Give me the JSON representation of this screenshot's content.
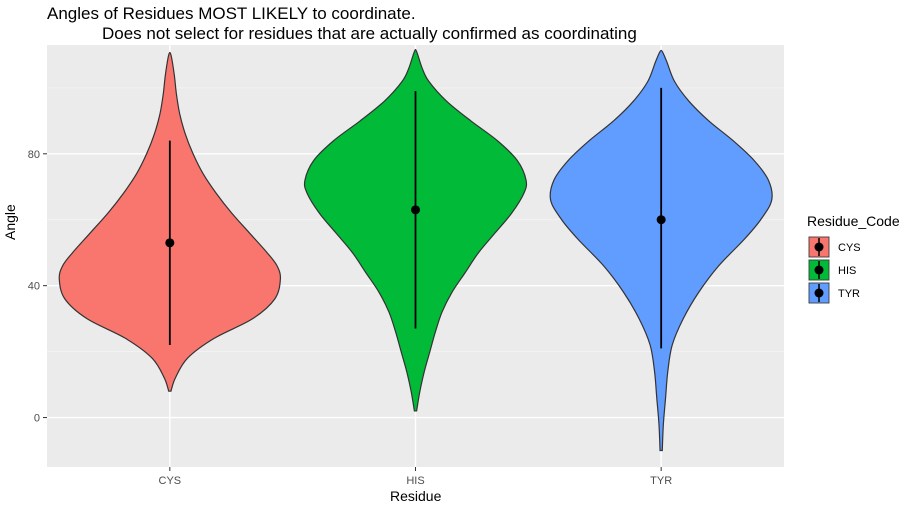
{
  "chart_data": {
    "type": "violin",
    "title": "Angles of Residues MOST LIKELY to coordinate.",
    "subtitle": "Does not select for residues that are actually confirmed as coordinating",
    "xlabel": "Residue",
    "ylabel": "Angle",
    "categories": [
      "CYS",
      "HIS",
      "TYR"
    ],
    "ylim": [
      -15,
      113
    ],
    "yticks": [
      0,
      40,
      80
    ],
    "grid": true,
    "legend": {
      "title": "Residue_Code",
      "position": "right",
      "entries": [
        "CYS",
        "HIS",
        "TYR"
      ]
    },
    "colors": {
      "CYS": "#F8766D",
      "HIS": "#00BA38",
      "TYR": "#619CFF",
      "panel": "#EBEBEB",
      "grid": "#FFFFFF"
    },
    "series": [
      {
        "category": "CYS",
        "min": 8,
        "max": 110,
        "mean": 53,
        "line_low": 22,
        "line_high": 84,
        "density": [
          [
            8,
            0.01
          ],
          [
            12,
            0.05
          ],
          [
            18,
            0.16
          ],
          [
            24,
            0.4
          ],
          [
            30,
            0.75
          ],
          [
            36,
            0.95
          ],
          [
            42,
            1.0
          ],
          [
            46,
            0.97
          ],
          [
            50,
            0.88
          ],
          [
            56,
            0.72
          ],
          [
            62,
            0.56
          ],
          [
            68,
            0.42
          ],
          [
            74,
            0.3
          ],
          [
            80,
            0.21
          ],
          [
            86,
            0.14
          ],
          [
            92,
            0.09
          ],
          [
            98,
            0.06
          ],
          [
            104,
            0.04
          ],
          [
            110,
            0.01
          ]
        ]
      },
      {
        "category": "HIS",
        "min": 2,
        "max": 111,
        "mean": 63,
        "line_low": 27,
        "line_high": 99,
        "density": [
          [
            2,
            0.01
          ],
          [
            8,
            0.04
          ],
          [
            14,
            0.08
          ],
          [
            20,
            0.13
          ],
          [
            26,
            0.18
          ],
          [
            32,
            0.24
          ],
          [
            38,
            0.33
          ],
          [
            44,
            0.45
          ],
          [
            50,
            0.57
          ],
          [
            56,
            0.72
          ],
          [
            62,
            0.87
          ],
          [
            68,
            0.98
          ],
          [
            72,
            1.0
          ],
          [
            78,
            0.92
          ],
          [
            84,
            0.74
          ],
          [
            90,
            0.5
          ],
          [
            96,
            0.28
          ],
          [
            102,
            0.12
          ],
          [
            106,
            0.06
          ],
          [
            111,
            0.01
          ]
        ]
      },
      {
        "category": "TYR",
        "min": -10,
        "max": 111,
        "mean": 60,
        "line_low": 21,
        "line_high": 100,
        "density": [
          [
            -10,
            0.01
          ],
          [
            -2,
            0.02
          ],
          [
            6,
            0.04
          ],
          [
            14,
            0.06
          ],
          [
            22,
            0.1
          ],
          [
            30,
            0.2
          ],
          [
            38,
            0.34
          ],
          [
            46,
            0.52
          ],
          [
            54,
            0.75
          ],
          [
            60,
            0.9
          ],
          [
            66,
            1.0
          ],
          [
            72,
            0.97
          ],
          [
            78,
            0.84
          ],
          [
            84,
            0.65
          ],
          [
            90,
            0.43
          ],
          [
            96,
            0.25
          ],
          [
            102,
            0.12
          ],
          [
            108,
            0.05
          ],
          [
            111,
            0.01
          ]
        ]
      }
    ]
  }
}
